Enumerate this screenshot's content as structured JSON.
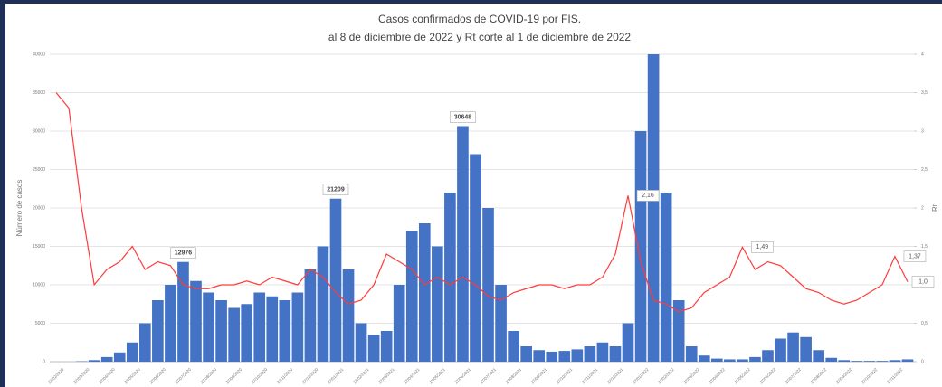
{
  "chart_data": {
    "type": "bar_line",
    "title": "Casos confirmados de COVID-19 por FIS.",
    "subtitle": "al 8 de diciembre de 2022 y Rt corte al 1 de diciembre de 2022",
    "y_label": "Número de casos",
    "y2_label": "Rt",
    "categories": [
      "27/02/2020",
      null,
      "27/03/2020",
      null,
      "27/04/2020",
      null,
      "27/05/2020",
      null,
      "27/06/2020",
      null,
      "27/07/2020",
      null,
      "27/08/2020",
      null,
      "27/09/2020",
      null,
      "27/10/2020",
      null,
      "27/11/2020",
      null,
      "27/12/2020",
      null,
      "27/01/2021",
      null,
      "27/02/2021",
      null,
      "27/03/2021",
      null,
      "27/04/2021",
      null,
      "27/05/2021",
      null,
      "27/06/2021",
      null,
      "27/07/2021",
      null,
      "27/08/2021",
      null,
      "27/09/2021",
      null,
      "27/10/2021",
      null,
      "27/11/2021",
      null,
      "27/12/2021",
      null,
      "27/01/2022",
      null,
      "27/02/2022",
      null,
      "27/03/2022",
      null,
      "27/04/2022",
      null,
      "27/05/2022",
      null,
      "27/06/2022",
      null,
      "27/07/2022",
      null,
      "27/08/2022",
      null,
      "27/09/2022",
      null,
      "27/10/2022",
      null,
      "27/11/2022",
      null
    ],
    "series": [
      {
        "name": "Casos",
        "color": "#4472c4",
        "axis": "y",
        "values": [
          0,
          0,
          50,
          200,
          600,
          1200,
          2500,
          5000,
          8000,
          10000,
          12976,
          10500,
          9000,
          8000,
          7000,
          7500,
          9000,
          8500,
          8000,
          9000,
          12000,
          15000,
          21209,
          12000,
          5000,
          3500,
          4000,
          10000,
          17000,
          18000,
          15000,
          22000,
          30648,
          27000,
          20000,
          10000,
          4000,
          2000,
          1500,
          1300,
          1400,
          1600,
          2000,
          2500,
          2000,
          5000,
          30000,
          40000,
          22000,
          8000,
          2000,
          800,
          400,
          300,
          300,
          600,
          1500,
          3000,
          3800,
          3200,
          1500,
          500,
          200,
          100,
          100,
          100,
          200,
          300
        ],
        "value_labels": [
          null,
          null,
          null,
          null,
          null,
          null,
          null,
          null,
          null,
          null,
          "12976",
          null,
          null,
          null,
          null,
          null,
          null,
          null,
          null,
          null,
          null,
          null,
          "21209",
          null,
          null,
          null,
          null,
          null,
          null,
          null,
          null,
          null,
          "30648",
          null,
          null,
          null,
          null,
          null,
          null,
          null,
          null,
          null,
          null,
          null,
          null,
          null,
          null,
          null,
          null,
          null,
          null,
          null,
          null,
          null,
          null,
          null,
          null,
          null,
          null,
          null,
          null,
          null,
          null,
          null,
          null,
          null,
          null,
          null
        ]
      },
      {
        "name": "Rt",
        "color": "#ff3b3b",
        "axis": "y2",
        "values": [
          3.5,
          3.3,
          2.0,
          1.0,
          1.2,
          1.3,
          1.5,
          1.2,
          1.3,
          1.25,
          1.0,
          0.95,
          0.95,
          1.0,
          1.0,
          1.05,
          1.0,
          1.1,
          1.05,
          1.0,
          1.2,
          1.1,
          0.9,
          0.75,
          0.8,
          1.0,
          1.4,
          1.3,
          1.2,
          1.0,
          1.1,
          1.0,
          1.1,
          1.0,
          0.85,
          0.8,
          0.9,
          0.95,
          1.0,
          1.0,
          0.95,
          1.0,
          1.0,
          1.1,
          1.4,
          2.16,
          1.3,
          0.8,
          0.75,
          0.65,
          0.7,
          0.9,
          1.0,
          1.1,
          1.49,
          1.2,
          1.3,
          1.25,
          1.1,
          0.95,
          0.9,
          0.8,
          0.75,
          0.8,
          0.9,
          1.0,
          1.37,
          1.04
        ],
        "value_labels": [
          null,
          null,
          null,
          null,
          null,
          null,
          null,
          null,
          null,
          null,
          null,
          null,
          null,
          null,
          null,
          null,
          null,
          null,
          null,
          null,
          null,
          null,
          null,
          null,
          null,
          null,
          null,
          null,
          null,
          null,
          null,
          null,
          null,
          null,
          null,
          null,
          null,
          null,
          null,
          null,
          null,
          null,
          null,
          null,
          null,
          "2,16",
          null,
          null,
          null,
          null,
          null,
          null,
          null,
          null,
          "1,49",
          null,
          null,
          null,
          null,
          null,
          null,
          null,
          null,
          null,
          null,
          null,
          "1,37",
          "1,0"
        ]
      }
    ],
    "ylim": [
      0,
      40000
    ],
    "yticks": [
      0,
      5000,
      10000,
      15000,
      20000,
      25000,
      30000,
      35000,
      40000
    ],
    "y2lim": [
      0,
      4
    ],
    "y2ticks": [
      0,
      {
        "value": 0.5,
        "label": "0,5"
      },
      1,
      {
        "value": 1.5,
        "label": "1,5"
      },
      2,
      {
        "value": 2.5,
        "label": "2,5"
      },
      3,
      {
        "value": 3.5,
        "label": "3,5"
      },
      4
    ],
    "grid": true
  }
}
